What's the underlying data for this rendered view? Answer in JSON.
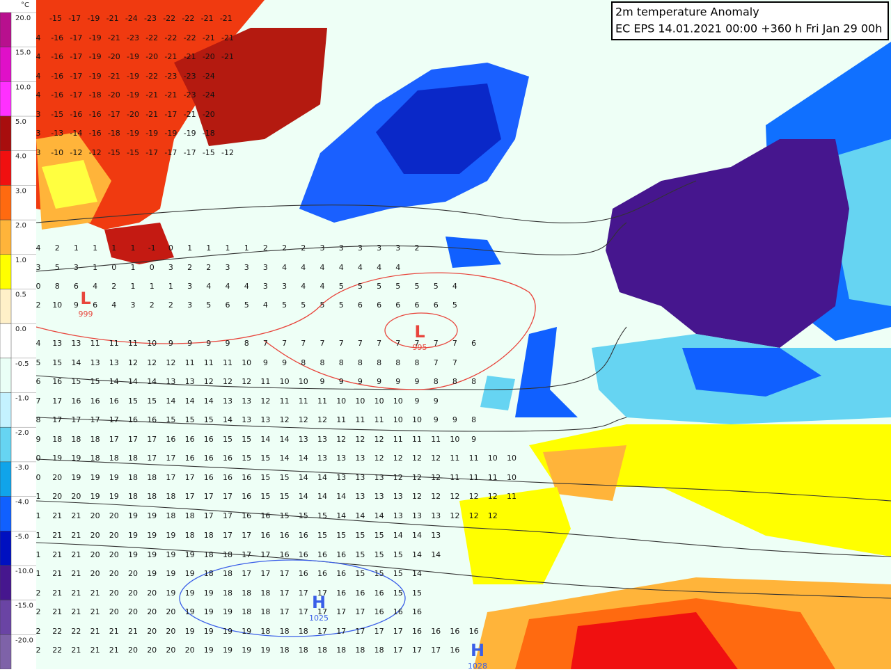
{
  "title": {
    "line1": "2m temperature Anomaly",
    "line2": "EC EPS 14.01.2021 00:00 +360 h Fri Jan 29 00h"
  },
  "legend": {
    "unit": "°C",
    "entries": [
      {
        "label": "20.0",
        "color": "#b8108e"
      },
      {
        "label": "15.0",
        "color": "#e010c8"
      },
      {
        "label": "10.0",
        "color": "#ff30ff"
      },
      {
        "label": "5.0",
        "color": "#a80e0e"
      },
      {
        "label": "4.0",
        "color": "#f01010"
      },
      {
        "label": "3.0",
        "color": "#ff6a10"
      },
      {
        "label": "2.0",
        "color": "#ffb43a"
      },
      {
        "label": "1.0",
        "color": "#ffff00"
      },
      {
        "label": "0.5",
        "color": "#fff0c8"
      },
      {
        "label": "0.0",
        "color": "#ffffff"
      },
      {
        "label": "-0.5",
        "color": "#eafff6"
      },
      {
        "label": "-1.0",
        "color": "#c4f2ff"
      },
      {
        "label": "-2.0",
        "color": "#66d4f2"
      },
      {
        "label": "-3.0",
        "color": "#10a4ea"
      },
      {
        "label": "-4.0",
        "color": "#1060ff"
      },
      {
        "label": "-5.0",
        "color": "#0010c0"
      },
      {
        "label": "-10.0",
        "color": "#46168e"
      },
      {
        "label": "-15.0",
        "color": "#6a44a4"
      },
      {
        "label": "-20.0",
        "color": "#7e62a8"
      }
    ]
  },
  "pressure_centers": [
    {
      "letter": "L",
      "value": 999,
      "color": "#e8453c"
    },
    {
      "letter": "L",
      "value": 995,
      "color": "#e8453c"
    },
    {
      "letter": "H",
      "value": 1025,
      "color": "#3a5ee8"
    },
    {
      "letter": "H",
      "value": 1028,
      "color": "#3a5ee8"
    }
  ],
  "grid_rows": [
    [
      -15,
      -17,
      -19,
      -21,
      -24,
      -23,
      -22,
      -22,
      -21,
      -21
    ],
    [
      4,
      -16,
      -17,
      -19,
      -21,
      -23,
      -22,
      -22,
      -22,
      -21,
      -21
    ],
    [
      4,
      -16,
      -17,
      -19,
      -20,
      -19,
      -20,
      -21,
      -21,
      -20,
      -21
    ],
    [
      4,
      -16,
      -17,
      -19,
      -21,
      -19,
      -22,
      -23,
      -23,
      -24
    ],
    [
      4,
      -16,
      -17,
      -18,
      -20,
      -19,
      -21,
      -21,
      -23,
      -24
    ],
    [
      3,
      -15,
      -16,
      -16,
      -17,
      -20,
      -21,
      -17,
      -21,
      -20
    ],
    [
      3,
      -13,
      -14,
      -16,
      -18,
      -19,
      -19,
      -19,
      -19,
      -18
    ],
    [
      3,
      -10,
      -12,
      -12,
      -15,
      -15,
      -17,
      -17,
      -17,
      -15,
      -12
    ],
    [
      4,
      2,
      1,
      1,
      1,
      1,
      -1,
      0,
      1,
      1,
      1,
      1,
      2,
      2,
      2,
      3,
      3,
      3,
      3,
      3,
      2
    ],
    [
      3,
      5,
      3,
      1,
      0,
      1,
      0,
      3,
      2,
      2,
      3,
      3,
      3,
      4,
      4,
      4,
      4,
      4,
      4,
      4
    ],
    [
      0,
      8,
      6,
      4,
      2,
      1,
      1,
      1,
      3,
      4,
      4,
      4,
      3,
      3,
      4,
      4,
      5,
      5,
      5,
      5,
      5,
      5,
      4
    ],
    [
      2,
      10,
      9,
      6,
      4,
      3,
      2,
      2,
      3,
      5,
      6,
      5,
      4,
      5,
      5,
      5,
      5,
      6,
      6,
      6,
      6,
      6,
      5
    ],
    [
      4,
      13,
      13,
      11,
      11,
      11,
      10,
      9,
      9,
      9,
      9,
      8,
      7,
      7,
      7,
      7,
      7,
      7,
      7,
      7,
      7,
      7,
      7,
      6
    ],
    [
      5,
      15,
      14,
      13,
      13,
      12,
      12,
      12,
      11,
      11,
      11,
      10,
      9,
      9,
      8,
      8,
      8,
      8,
      8,
      8,
      8,
      7,
      7
    ],
    [
      6,
      16,
      15,
      15,
      14,
      14,
      14,
      13,
      13,
      12,
      12,
      12,
      11,
      10,
      10,
      9,
      9,
      9,
      9,
      9,
      9,
      8,
      8,
      8
    ],
    [
      7,
      17,
      16,
      16,
      16,
      15,
      15,
      14,
      14,
      14,
      13,
      13,
      12,
      11,
      11,
      11,
      10,
      10,
      10,
      10,
      9,
      9
    ],
    [
      8,
      17,
      17,
      17,
      17,
      16,
      16,
      15,
      15,
      15,
      14,
      13,
      13,
      12,
      12,
      12,
      11,
      11,
      11,
      10,
      10,
      9,
      9,
      8
    ],
    [
      9,
      18,
      18,
      18,
      17,
      17,
      17,
      16,
      16,
      16,
      15,
      15,
      14,
      14,
      13,
      13,
      12,
      12,
      12,
      11,
      11,
      11,
      10,
      9
    ],
    [
      0,
      19,
      19,
      18,
      18,
      18,
      17,
      17,
      16,
      16,
      16,
      15,
      15,
      14,
      14,
      13,
      13,
      13,
      12,
      12,
      12,
      12,
      11,
      11,
      10,
      10
    ],
    [
      0,
      20,
      19,
      19,
      19,
      18,
      18,
      17,
      17,
      16,
      16,
      16,
      15,
      15,
      14,
      14,
      13,
      13,
      13,
      12,
      12,
      12,
      11,
      11,
      11,
      10
    ],
    [
      1,
      20,
      20,
      19,
      19,
      18,
      18,
      18,
      17,
      17,
      17,
      16,
      15,
      15,
      14,
      14,
      14,
      13,
      13,
      13,
      12,
      12,
      12,
      12,
      12,
      11
    ],
    [
      1,
      21,
      21,
      20,
      20,
      19,
      19,
      18,
      18,
      17,
      17,
      16,
      16,
      15,
      15,
      15,
      14,
      14,
      14,
      13,
      13,
      13,
      12,
      12,
      12
    ],
    [
      1,
      21,
      21,
      20,
      20,
      19,
      19,
      19,
      18,
      18,
      17,
      17,
      16,
      16,
      16,
      15,
      15,
      15,
      15,
      14,
      14,
      13
    ],
    [
      1,
      21,
      21,
      20,
      20,
      19,
      19,
      19,
      19,
      18,
      18,
      17,
      17,
      16,
      16,
      16,
      16,
      15,
      15,
      15,
      14,
      14
    ],
    [
      1,
      21,
      21,
      20,
      20,
      20,
      19,
      19,
      19,
      18,
      18,
      17,
      17,
      17,
      16,
      16,
      16,
      15,
      15,
      15,
      14
    ],
    [
      2,
      21,
      21,
      21,
      20,
      20,
      20,
      19,
      19,
      19,
      18,
      18,
      18,
      17,
      17,
      17,
      16,
      16,
      16,
      15,
      15
    ],
    [
      2,
      21,
      21,
      21,
      20,
      20,
      20,
      20,
      19,
      19,
      19,
      18,
      18,
      17,
      17,
      17,
      17,
      17,
      16,
      16,
      16
    ],
    [
      2,
      22,
      22,
      21,
      21,
      21,
      20,
      20,
      19,
      19,
      19,
      19,
      18,
      18,
      18,
      17,
      17,
      17,
      17,
      17,
      16,
      16,
      16,
      16
    ],
    [
      2,
      22,
      21,
      21,
      21,
      20,
      20,
      20,
      20,
      19,
      19,
      19,
      19,
      18,
      18,
      18,
      18,
      18,
      18,
      17,
      17,
      17,
      16
    ]
  ]
}
